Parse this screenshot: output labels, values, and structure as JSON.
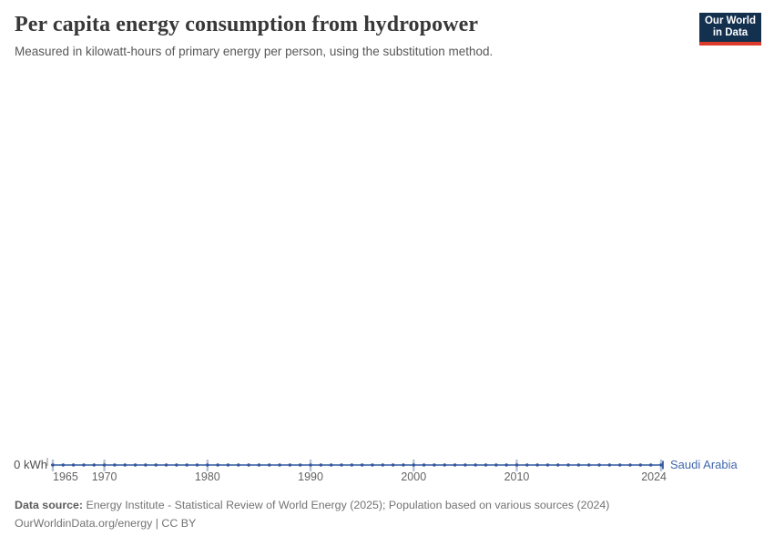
{
  "header": {
    "title": "Per capita energy consumption from hydropower",
    "subtitle": "Measured in kilowatt-hours of primary energy per person, using the substitution method.",
    "logo": {
      "line1": "Our World",
      "line2": "in Data",
      "bg_color": "#14304f",
      "accent_color": "#dc3a2b"
    }
  },
  "chart_data": {
    "type": "line",
    "title": "Per capita energy consumption from hydropower",
    "subtitle": "Measured in kilowatt-hours of primary energy per person, using the substitution method.",
    "ylabel": "kWh",
    "y_zero_label": "0 kWh",
    "ylim": [
      0,
      0
    ],
    "x_range": [
      1965,
      2024
    ],
    "x_ticks": [
      1965,
      1970,
      1980,
      1990,
      2000,
      2010,
      2024
    ],
    "grid": false,
    "legend_position": "right-of-line-end",
    "series": [
      {
        "name": "Saudi Arabia",
        "x": [
          1965,
          1966,
          1967,
          1968,
          1969,
          1970,
          1971,
          1972,
          1973,
          1974,
          1975,
          1976,
          1977,
          1978,
          1979,
          1980,
          1981,
          1982,
          1983,
          1984,
          1985,
          1986,
          1987,
          1988,
          1989,
          1990,
          1991,
          1992,
          1993,
          1994,
          1995,
          1996,
          1997,
          1998,
          1999,
          2000,
          2001,
          2002,
          2003,
          2004,
          2005,
          2006,
          2007,
          2008,
          2009,
          2010,
          2011,
          2012,
          2013,
          2014,
          2015,
          2016,
          2017,
          2018,
          2019,
          2020,
          2021,
          2022,
          2023,
          2024
        ],
        "values": [
          0,
          0,
          0,
          0,
          0,
          0,
          0,
          0,
          0,
          0,
          0,
          0,
          0,
          0,
          0,
          0,
          0,
          0,
          0,
          0,
          0,
          0,
          0,
          0,
          0,
          0,
          0,
          0,
          0,
          0,
          0,
          0,
          0,
          0,
          0,
          0,
          0,
          0,
          0,
          0,
          0,
          0,
          0,
          0,
          0,
          0,
          0,
          0,
          0,
          0,
          0,
          0,
          0,
          0,
          0,
          0,
          0,
          0,
          0,
          0
        ]
      }
    ],
    "colors": {
      "line": "#6583b7",
      "dot": "#35589d",
      "year_tick": "#b6c2d6",
      "zero_axis_tick": "#9e9e9e",
      "entity_label": "#4268ad"
    }
  },
  "footer": {
    "datasource_label": "Data source:",
    "datasource_text": "Energy Institute - Statistical Review of World Energy (2025); Population based on various sources (2024)",
    "license_text": "OurWorldinData.org/energy | CC BY"
  }
}
